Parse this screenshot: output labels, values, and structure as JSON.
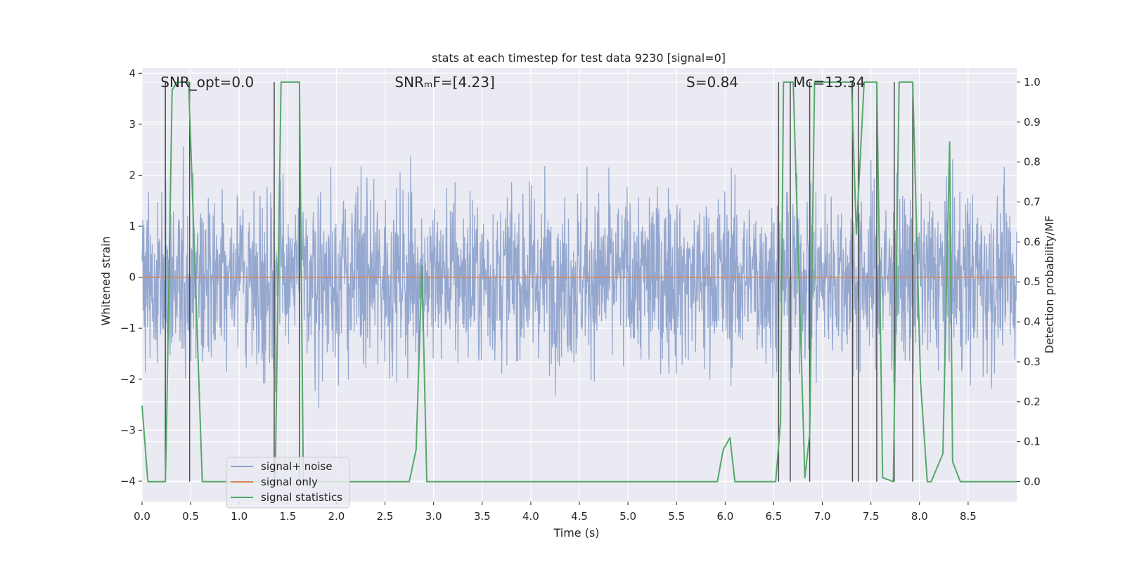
{
  "chart_data": {
    "type": "line",
    "title": "stats at each timestep for test data 9230 [signal=0]",
    "xlabel": "Time (s)",
    "ylabel": "Whitened strain",
    "y2label": "Detection probability/MF",
    "xlim": [
      0.0,
      9.0
    ],
    "ylim": [
      -4.4,
      4.1
    ],
    "y2lim": [
      -0.05,
      1.035
    ],
    "xticks": [
      0.0,
      0.5,
      1.0,
      1.5,
      2.0,
      2.5,
      3.0,
      3.5,
      4.0,
      4.5,
      5.0,
      5.5,
      6.0,
      6.5,
      7.0,
      7.5,
      8.0,
      8.5
    ],
    "xtick_labels": [
      "0.0",
      "0.5",
      "1.0",
      "1.5",
      "2.0",
      "2.5",
      "3.0",
      "3.5",
      "4.0",
      "4.5",
      "5.0",
      "5.5",
      "6.0",
      "6.5",
      "7.0",
      "7.5",
      "8.0",
      "8.5"
    ],
    "yticks": [
      4,
      3,
      2,
      1,
      0,
      -1,
      -2,
      -3,
      -4
    ],
    "ytick_labels": [
      "4",
      "3",
      "2",
      "1",
      "0",
      "−1",
      "−2",
      "−3",
      "−4"
    ],
    "y2ticks": [
      1.0,
      0.9,
      0.8,
      0.7,
      0.6,
      0.5,
      0.4,
      0.3,
      0.2,
      0.1,
      0.0
    ],
    "y2tick_labels": [
      "1.0",
      "0.9",
      "0.8",
      "0.7",
      "0.6",
      "0.5",
      "0.4",
      "0.3",
      "0.2",
      "0.1",
      "0.0"
    ],
    "grid": true,
    "legend_position": "lower-left",
    "annotations": [
      {
        "text": "SNR_opt=0.0",
        "x": 0.19
      },
      {
        "text": "SNRₘF=[4.23]",
        "x": 2.6
      },
      {
        "text": "S=0.84",
        "x": 5.6
      },
      {
        "text": "Mᴄ=13.34",
        "x": 6.7
      }
    ],
    "series": [
      {
        "name": "signal+ noise",
        "color": "#8fa3cc",
        "style": "dense noise band",
        "typical_range": [
          -1.8,
          2.0
        ],
        "peak_range": [
          -3.8,
          3.6
        ]
      },
      {
        "name": "signal only",
        "color": "#dd8452",
        "x": [
          0.0,
          9.0
        ],
        "y": [
          0.0,
          0.0
        ]
      },
      {
        "name": "signal statistics",
        "color": "#55a868",
        "axis": "right",
        "x": [
          0.0,
          0.06,
          0.24,
          0.25,
          0.31,
          0.36,
          0.41,
          0.48,
          0.62,
          1.37,
          1.43,
          1.62,
          1.66,
          2.75,
          2.82,
          2.88,
          2.93,
          5.92,
          5.98,
          6.05,
          6.1,
          6.52,
          6.57,
          6.6,
          6.7,
          6.82,
          6.87,
          6.92,
          7.3,
          7.35,
          7.43,
          7.56,
          7.62,
          7.73,
          7.79,
          7.93,
          8.01,
          8.08,
          8.12,
          8.24,
          8.31,
          8.34,
          8.42,
          9.0
        ],
        "y": [
          0.19,
          0.0,
          0.0,
          0.11,
          0.98,
          1.0,
          1.0,
          1.0,
          0.0,
          0.0,
          1.0,
          1.0,
          0.0,
          0.0,
          0.08,
          0.54,
          0.0,
          0.0,
          0.08,
          0.11,
          0.0,
          0.0,
          0.15,
          1.0,
          1.0,
          0.01,
          0.12,
          1.0,
          1.0,
          0.62,
          1.0,
          1.0,
          0.01,
          0.0,
          1.0,
          1.0,
          0.25,
          0.0,
          0.0,
          0.07,
          0.85,
          0.05,
          0.0,
          0.0
        ]
      }
    ],
    "vertical_markers": {
      "color": "#4c4c4c",
      "x": [
        0.24,
        0.49,
        1.36,
        1.62,
        6.55,
        6.67,
        6.87,
        7.31,
        7.37,
        7.56,
        7.74,
        7.93
      ]
    }
  }
}
